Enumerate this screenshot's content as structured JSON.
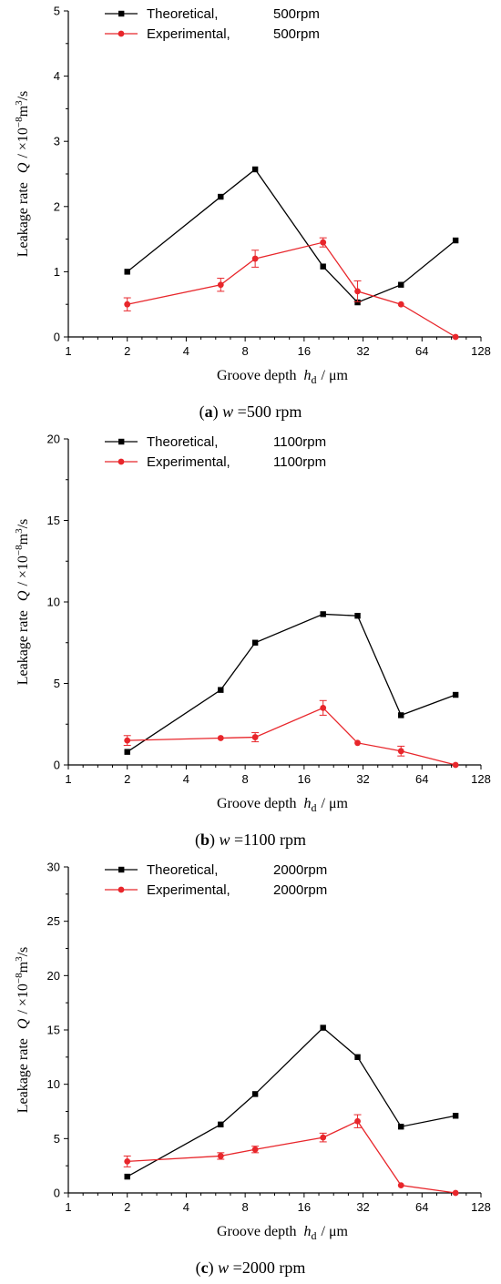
{
  "chart_data": [
    {
      "type": "line",
      "caption": {
        "tag": "a",
        "variable": "w",
        "value": "=500 rpm"
      },
      "xlabel": {
        "text": "Groove depth",
        "symbol": "h",
        "subscript": "d",
        "unit": "/ μm"
      },
      "ylabel": {
        "text": "Leakage rate",
        "symbol": "Q",
        "unit": "/ ×10",
        "exponent": "−8",
        "unit2": "m",
        "exponent2": "3",
        "unit3": "/s"
      },
      "x_scale": "log2",
      "xlim": [
        1,
        128
      ],
      "x_ticks": [
        1,
        2,
        4,
        8,
        16,
        32,
        64,
        128
      ],
      "x_tick_labels": [
        "1",
        "2",
        "4",
        "8",
        "16",
        "32",
        "64",
        "128"
      ],
      "ylim": [
        0,
        5
      ],
      "y_ticks": [
        0,
        1,
        2,
        3,
        4,
        5
      ],
      "y_tick_labels": [
        "0",
        "1",
        "2",
        "3",
        "4",
        "5"
      ],
      "legend_position": "top-left",
      "series": [
        {
          "name": "Theoretical,",
          "name_suffix": "500rpm",
          "color": "#000000",
          "marker": "square",
          "x": [
            2,
            6,
            9,
            20,
            30,
            50,
            95
          ],
          "y": [
            1.0,
            2.15,
            2.57,
            1.08,
            0.53,
            0.8,
            1.48
          ]
        },
        {
          "name": "Experimental,",
          "name_suffix": "500rpm",
          "color": "#e8262b",
          "marker": "circle",
          "x": [
            2,
            6,
            9,
            20,
            30,
            50,
            95
          ],
          "y": [
            0.5,
            0.8,
            1.2,
            1.45,
            0.7,
            0.5,
            0.0
          ],
          "error": [
            0.1,
            0.1,
            0.13,
            0.07,
            0.16,
            0.0,
            0.0
          ]
        }
      ]
    },
    {
      "type": "line",
      "caption": {
        "tag": "b",
        "variable": "w",
        "value": "=1100 rpm"
      },
      "xlabel": {
        "text": "Groove depth",
        "symbol": "h",
        "subscript": "d",
        "unit": "/ μm"
      },
      "ylabel": {
        "text": "Leakage rate",
        "symbol": "Q",
        "unit": "/ ×10",
        "exponent": "−8",
        "unit2": "m",
        "exponent2": "3",
        "unit3": "/s"
      },
      "x_scale": "log2",
      "xlim": [
        1,
        128
      ],
      "x_ticks": [
        1,
        2,
        4,
        8,
        16,
        32,
        64,
        128
      ],
      "x_tick_labels": [
        "1",
        "2",
        "4",
        "8",
        "16",
        "32",
        "64",
        "128"
      ],
      "ylim": [
        0,
        20
      ],
      "y_ticks": [
        0,
        5,
        10,
        15,
        20
      ],
      "y_tick_labels": [
        "0",
        "5",
        "10",
        "15",
        "20"
      ],
      "legend_position": "top-left",
      "series": [
        {
          "name": "Theoretical,",
          "name_suffix": "1100rpm",
          "color": "#000000",
          "marker": "square",
          "x": [
            2,
            6,
            9,
            20,
            30,
            50,
            95
          ],
          "y": [
            0.8,
            4.6,
            7.5,
            9.25,
            9.15,
            3.05,
            4.3
          ]
        },
        {
          "name": "Experimental,",
          "name_suffix": "1100rpm",
          "color": "#e8262b",
          "marker": "circle",
          "x": [
            2,
            6,
            9,
            20,
            30,
            50,
            95
          ],
          "y": [
            1.5,
            1.65,
            1.7,
            3.5,
            1.35,
            0.85,
            0.0
          ],
          "error": [
            0.3,
            0.0,
            0.28,
            0.45,
            0.0,
            0.3,
            0.0
          ]
        }
      ]
    },
    {
      "type": "line",
      "caption": {
        "tag": "c",
        "variable": "w",
        "value": "=2000 rpm"
      },
      "xlabel": {
        "text": "Groove depth",
        "symbol": "h",
        "subscript": "d",
        "unit": "/ μm"
      },
      "ylabel": {
        "text": "Leakage rate",
        "symbol": "Q",
        "unit": "/ ×10",
        "exponent": "−8",
        "unit2": "m",
        "exponent2": "3",
        "unit3": "/s"
      },
      "x_scale": "log2",
      "xlim": [
        1,
        128
      ],
      "x_ticks": [
        1,
        2,
        4,
        8,
        16,
        32,
        64,
        128
      ],
      "x_tick_labels": [
        "1",
        "2",
        "4",
        "8",
        "16",
        "32",
        "64",
        "128"
      ],
      "ylim": [
        0,
        30
      ],
      "y_ticks": [
        0,
        5,
        10,
        15,
        20,
        25,
        30
      ],
      "y_tick_labels": [
        "0",
        "5",
        "10",
        "15",
        "20",
        "25",
        "30"
      ],
      "legend_position": "top-left",
      "series": [
        {
          "name": "Theoretical,",
          "name_suffix": "2000rpm",
          "color": "#000000",
          "marker": "square",
          "x": [
            2,
            6,
            9,
            20,
            30,
            50,
            95
          ],
          "y": [
            1.5,
            6.3,
            9.1,
            15.2,
            12.5,
            6.1,
            7.1
          ]
        },
        {
          "name": "Experimental,",
          "name_suffix": "2000rpm",
          "color": "#e8262b",
          "marker": "circle",
          "x": [
            2,
            6,
            9,
            20,
            30,
            50,
            95
          ],
          "y": [
            2.9,
            3.4,
            4.0,
            5.1,
            6.6,
            0.7,
            0.0
          ],
          "error": [
            0.5,
            0.3,
            0.3,
            0.4,
            0.6,
            0.0,
            0.0
          ]
        }
      ]
    }
  ]
}
